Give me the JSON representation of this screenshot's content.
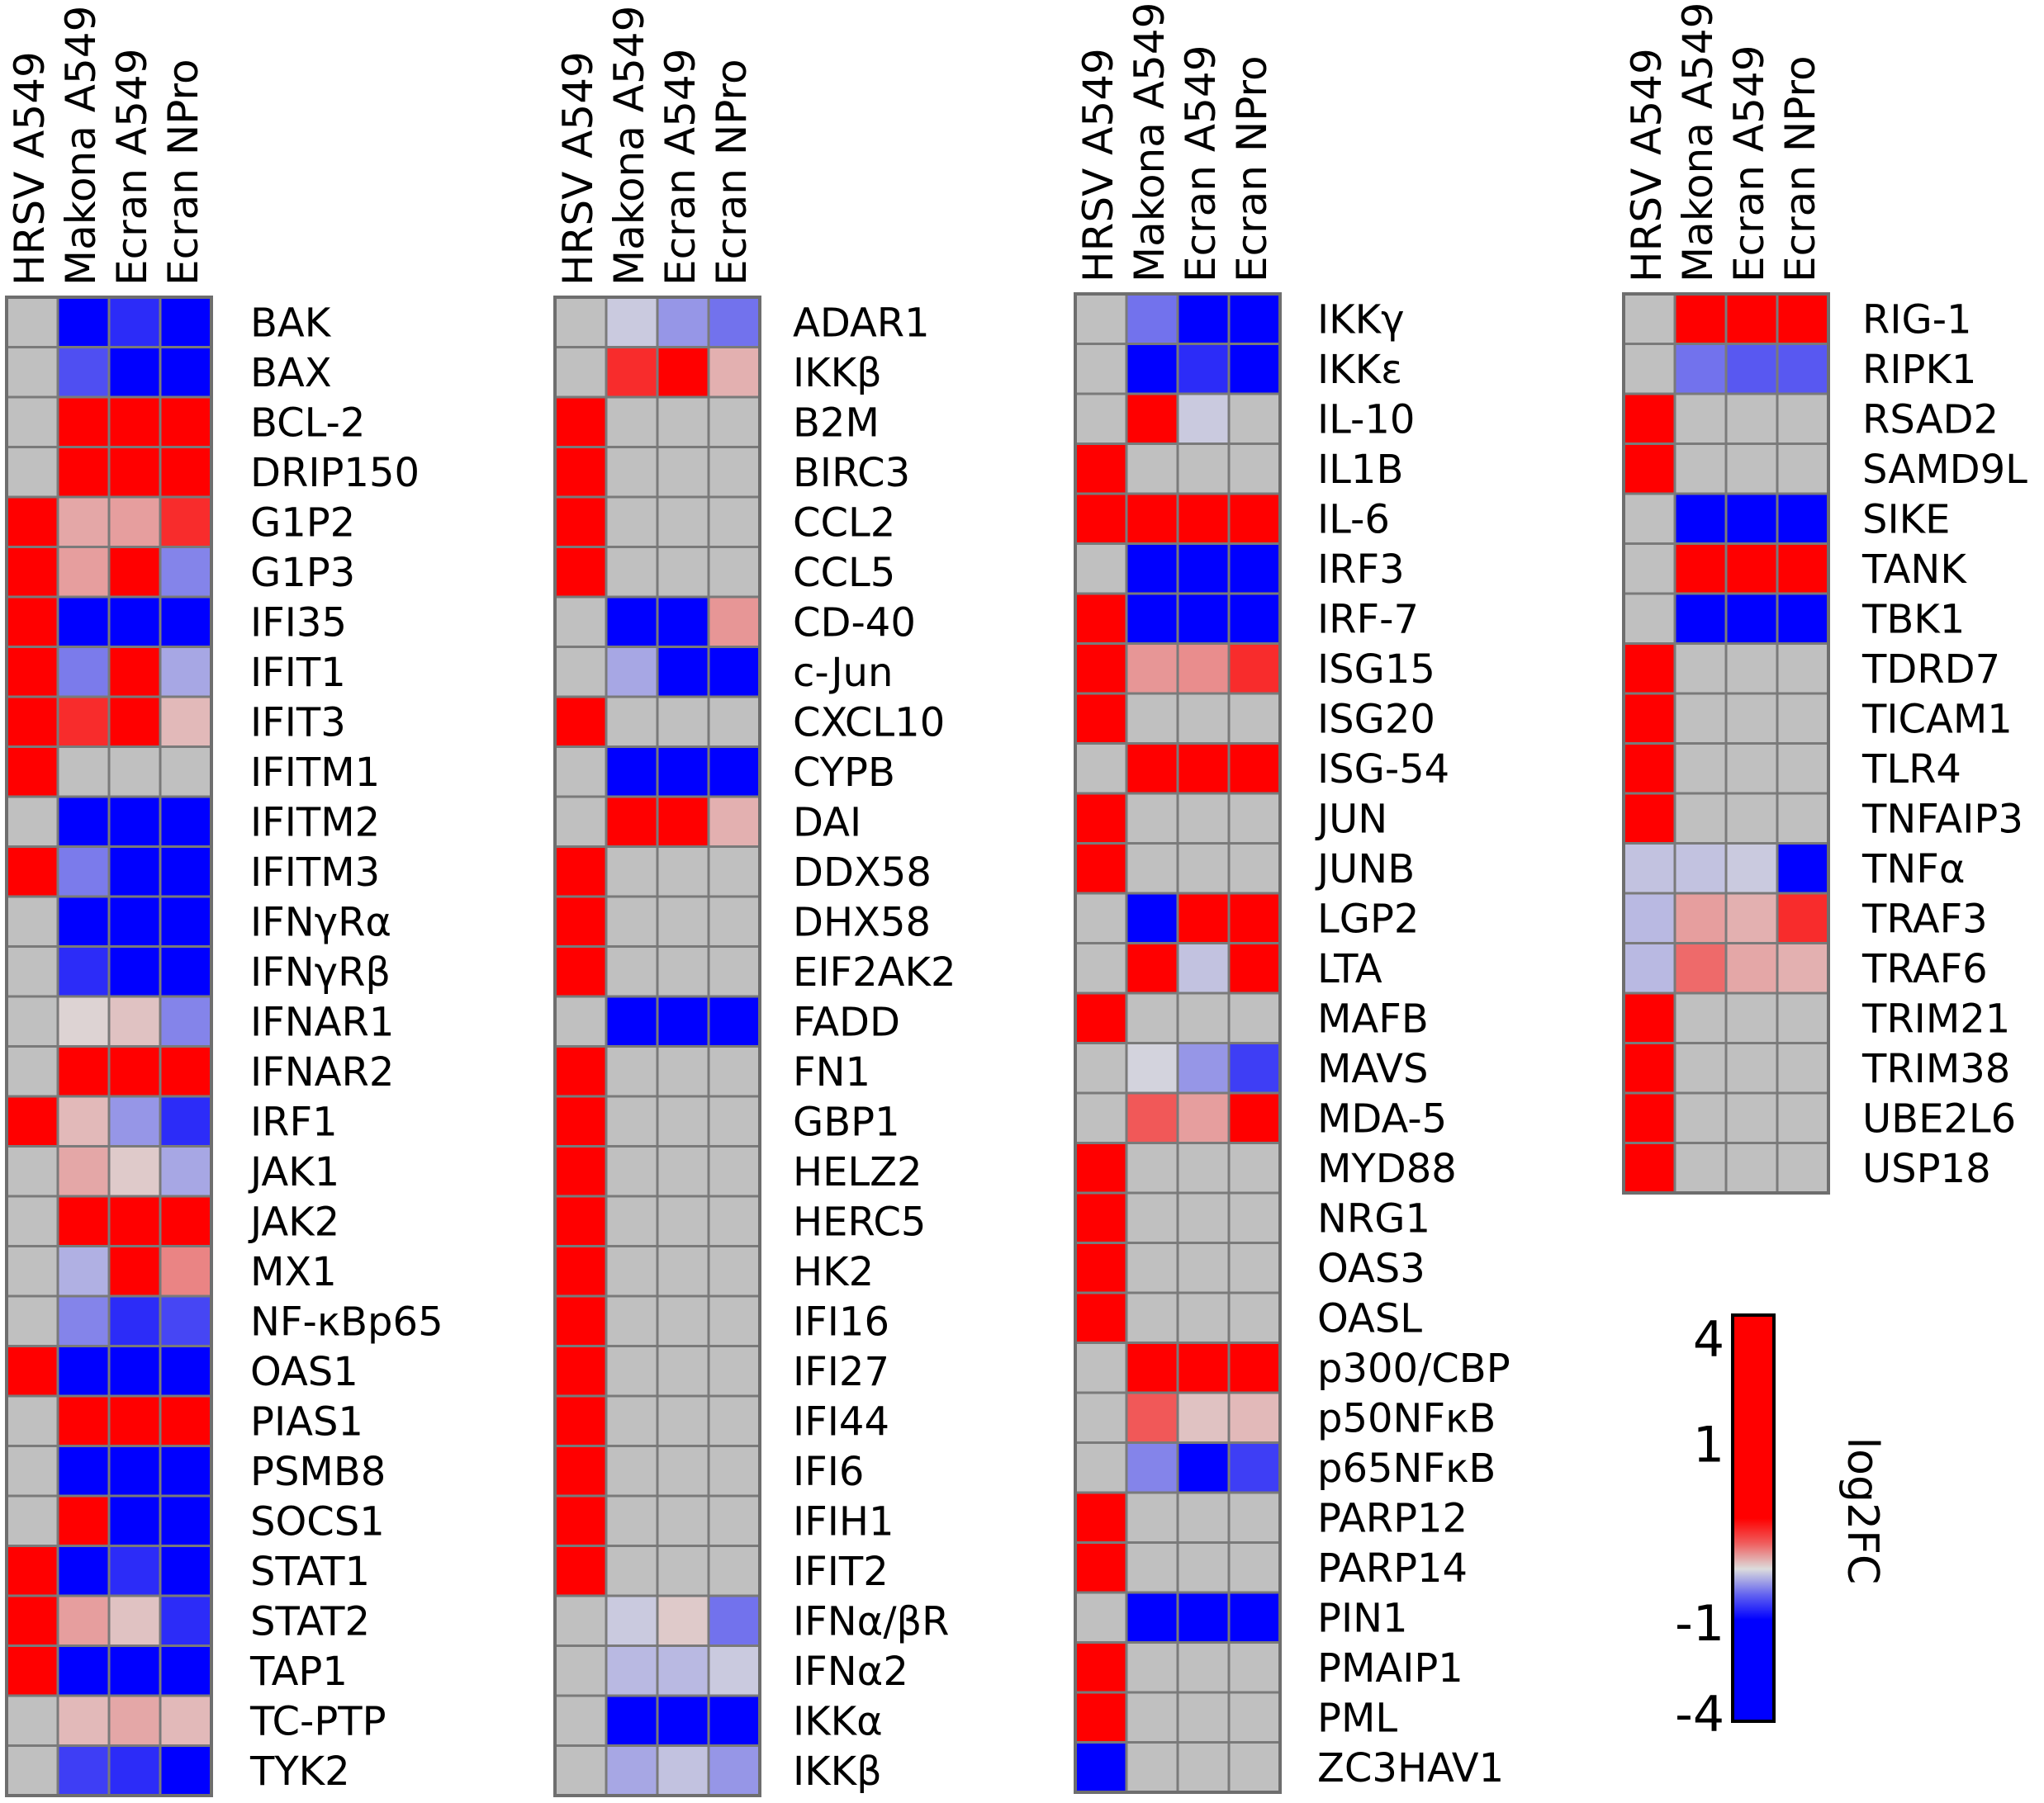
{
  "chart_data": {
    "type": "heatmap",
    "columns": [
      "HRSV A549",
      "Makona A549",
      "Ecran A549",
      "Ecran NPro"
    ],
    "colorbar": {
      "title": "log2FC",
      "ticks": [
        "4",
        "1",
        "-1",
        "-4"
      ],
      "tick_values": [
        4,
        1,
        -1,
        -4
      ],
      "range": [
        -4,
        4
      ],
      "colors": {
        "high": "#ff0000",
        "mid": "#dcdcdc",
        "low": "#0000ff",
        "no_change": "#c0c0c0"
      }
    },
    "panels": [
      {
        "rows": [
          "BAK",
          "BAX",
          "BCL-2",
          "DRIP150",
          "G1P2",
          "G1P3",
          "IFI35",
          "IFIT1",
          "IFIT3",
          "IFITM1",
          "IFITM2",
          "IFITM3",
          "IFNγRα",
          "IFNγRβ",
          "IFNAR1",
          "IFNAR2",
          "IRF1",
          "JAK1",
          "JAK2",
          "MX1",
          "NF-κBp65",
          "OAS1",
          "PIAS1",
          "PSMB8",
          "SOCS1",
          "STAT1",
          "STAT2",
          "TAP1",
          "TC-PTP",
          "TYK2"
        ],
        "values": [
          [
            null,
            -2.5,
            -2,
            -4
          ],
          [
            null,
            -1.6,
            -3.5,
            -3
          ],
          [
            null,
            4,
            4,
            4
          ],
          [
            null,
            3,
            3,
            3
          ],
          [
            4,
            0.6,
            0.7,
            2
          ],
          [
            4,
            0.7,
            3,
            -1
          ],
          [
            4,
            -3,
            -2.8,
            -4
          ],
          [
            4,
            -1.1,
            3,
            -0.6
          ],
          [
            4,
            2,
            2.5,
            0.4
          ],
          [
            4,
            null,
            null,
            null
          ],
          [
            null,
            -4,
            -4,
            -4
          ],
          [
            4,
            -1.1,
            -3,
            -3
          ],
          [
            null,
            -3.5,
            -4,
            -3
          ],
          [
            null,
            -2,
            -2.5,
            -3
          ],
          [
            null,
            0.1,
            0.3,
            -1
          ],
          [
            null,
            4,
            4,
            4
          ],
          [
            4,
            0.4,
            -0.8,
            -2
          ],
          [
            null,
            0.6,
            0.2,
            -0.6
          ],
          [
            null,
            3,
            3.5,
            3.5
          ],
          [
            null,
            -0.5,
            3.5,
            1
          ],
          [
            null,
            -1,
            -2,
            -1.7
          ],
          [
            4,
            -3.5,
            -2.5,
            -4
          ],
          [
            null,
            3.5,
            4,
            4
          ],
          [
            null,
            -4,
            -3.5,
            -4
          ],
          [
            null,
            4,
            -4,
            -2.5
          ],
          [
            4,
            -2.5,
            -2,
            -3
          ],
          [
            4,
            0.7,
            0.3,
            -2
          ],
          [
            4,
            -3.5,
            -4,
            -2.5
          ],
          [
            null,
            0.4,
            0.6,
            0.4
          ],
          [
            null,
            -1.8,
            -2,
            -3
          ]
        ]
      },
      {
        "rows": [
          "ADAR1",
          "IKKβ",
          "B2M",
          "BIRC3",
          "CCL2",
          "CCL5",
          "CD-40",
          "c-Jun",
          "CXCL10",
          "CYPB",
          "DAI",
          "DDX58",
          "DHX58",
          "EIF2AK2",
          "FADD",
          "FN1",
          "GBP1",
          "HELZ2",
          "HERC5",
          "HK2",
          "IFI16",
          "IFI27",
          "IFI44",
          "IFI6",
          "IFIH1",
          "IFIT2",
          "IFNα/βR",
          "IFNα2",
          "IKKα",
          "IKKβ"
        ],
        "values": [
          [
            null,
            -0.2,
            -0.8,
            -1.2
          ],
          [
            null,
            2,
            2.5,
            0.5
          ],
          [
            4,
            null,
            null,
            null
          ],
          [
            4,
            null,
            null,
            null
          ],
          [
            4,
            null,
            null,
            null
          ],
          [
            4,
            null,
            null,
            null
          ],
          [
            null,
            -3,
            -4,
            0.8
          ],
          [
            null,
            -0.6,
            -4,
            -4
          ],
          [
            4,
            null,
            null,
            null
          ],
          [
            null,
            -3.5,
            -4,
            -4
          ],
          [
            null,
            3.5,
            4,
            0.5
          ],
          [
            4,
            null,
            null,
            null
          ],
          [
            4,
            null,
            null,
            null
          ],
          [
            4,
            null,
            null,
            null
          ],
          [
            null,
            -3.5,
            -3.5,
            -4
          ],
          [
            4,
            null,
            null,
            null
          ],
          [
            4,
            null,
            null,
            null
          ],
          [
            4,
            null,
            null,
            null
          ],
          [
            4,
            null,
            null,
            null
          ],
          [
            4,
            null,
            null,
            null
          ],
          [
            4,
            null,
            null,
            null
          ],
          [
            4,
            null,
            null,
            null
          ],
          [
            4,
            null,
            null,
            null
          ],
          [
            4,
            null,
            null,
            null
          ],
          [
            4,
            null,
            null,
            null
          ],
          [
            4,
            null,
            null,
            null
          ],
          [
            null,
            -0.2,
            0.2,
            -1.2
          ],
          [
            null,
            -0.4,
            -0.4,
            -0.2
          ],
          [
            null,
            -2.5,
            -2.5,
            -4
          ],
          [
            null,
            -0.6,
            -0.3,
            -0.8
          ]
        ]
      },
      {
        "rows": [
          "IKKγ",
          "IKKε",
          "IL-10",
          "IL1B",
          "IL-6",
          "IRF3",
          "IRF-7",
          "ISG15",
          "ISG20",
          "ISG-54",
          "JUN",
          "JUNB",
          "LGP2",
          "LTA",
          "MAFB",
          "MAVS",
          "MDA-5",
          "MYD88",
          "NRG1",
          "OAS3",
          "OASL",
          "p300/CBP",
          "p50NFκB",
          "p65NFκB",
          "PARP12",
          "PARP14",
          "PIN1",
          "PMAIP1",
          "PML",
          "ZC3HAV1"
        ],
        "values": [
          [
            null,
            -1.2,
            -3,
            -3.8
          ],
          [
            null,
            -2.5,
            -2,
            -2.5
          ],
          [
            null,
            4,
            -0.2,
            null
          ],
          [
            4,
            null,
            null,
            null
          ],
          [
            4,
            4,
            4,
            4
          ],
          [
            null,
            -3,
            -3.5,
            -3.8
          ],
          [
            4,
            -3.8,
            -4,
            -3.8
          ],
          [
            4,
            0.8,
            0.9,
            2
          ],
          [
            4,
            null,
            null,
            null
          ],
          [
            null,
            3.5,
            3.5,
            4
          ],
          [
            4,
            null,
            null,
            null
          ],
          [
            4,
            null,
            null,
            null
          ],
          [
            null,
            -2.8,
            3.5,
            3.5
          ],
          [
            null,
            4,
            -0.3,
            4
          ],
          [
            4,
            null,
            null,
            null
          ],
          [
            null,
            -0.1,
            -0.8,
            -1.8
          ],
          [
            null,
            1.5,
            0.7,
            3.5
          ],
          [
            4,
            null,
            null,
            null
          ],
          [
            4,
            null,
            null,
            null
          ],
          [
            4,
            null,
            null,
            null
          ],
          [
            4,
            null,
            null,
            null
          ],
          [
            null,
            4,
            4,
            4
          ],
          [
            null,
            1.5,
            0.3,
            0.4
          ],
          [
            null,
            -1,
            -2.5,
            -1.8
          ],
          [
            4,
            null,
            null,
            null
          ],
          [
            4,
            null,
            null,
            null
          ],
          [
            null,
            -3.8,
            -3.5,
            -4
          ],
          [
            4,
            null,
            null,
            null
          ],
          [
            4,
            null,
            null,
            null
          ],
          [
            -4,
            null,
            null,
            null
          ]
        ]
      },
      {
        "rows": [
          "RIG-1",
          "RIPK1",
          "RSAD2",
          "SAMD9L",
          "SIKE",
          "TANK",
          "TBK1",
          "TDRD7",
          "TICAM1",
          "TLR4",
          "TNFAIP3",
          "TNFα",
          "TRAF3",
          "TRAF6",
          "TRIM21",
          "TRIM38",
          "UBE2L6",
          "USP18"
        ],
        "values": [
          [
            null,
            3,
            3.5,
            3.5
          ],
          [
            null,
            -1.2,
            -1.5,
            -1.5
          ],
          [
            4,
            null,
            null,
            null
          ],
          [
            4,
            null,
            null,
            null
          ],
          [
            null,
            -2.5,
            -2.8,
            -3
          ],
          [
            null,
            3,
            3.5,
            3
          ],
          [
            null,
            -2.5,
            -2.5,
            -2.8
          ],
          [
            4,
            null,
            null,
            null
          ],
          [
            4,
            null,
            null,
            null
          ],
          [
            4,
            null,
            null,
            null
          ],
          [
            4,
            null,
            null,
            null
          ],
          [
            -0.3,
            -0.3,
            -0.2,
            -4
          ],
          [
            -0.4,
            0.7,
            0.5,
            2
          ],
          [
            -0.4,
            1.3,
            0.6,
            0.5
          ],
          [
            4,
            null,
            null,
            null
          ],
          [
            4,
            null,
            null,
            null
          ],
          [
            4,
            null,
            null,
            null
          ],
          [
            4,
            null,
            null,
            null
          ]
        ]
      }
    ]
  }
}
